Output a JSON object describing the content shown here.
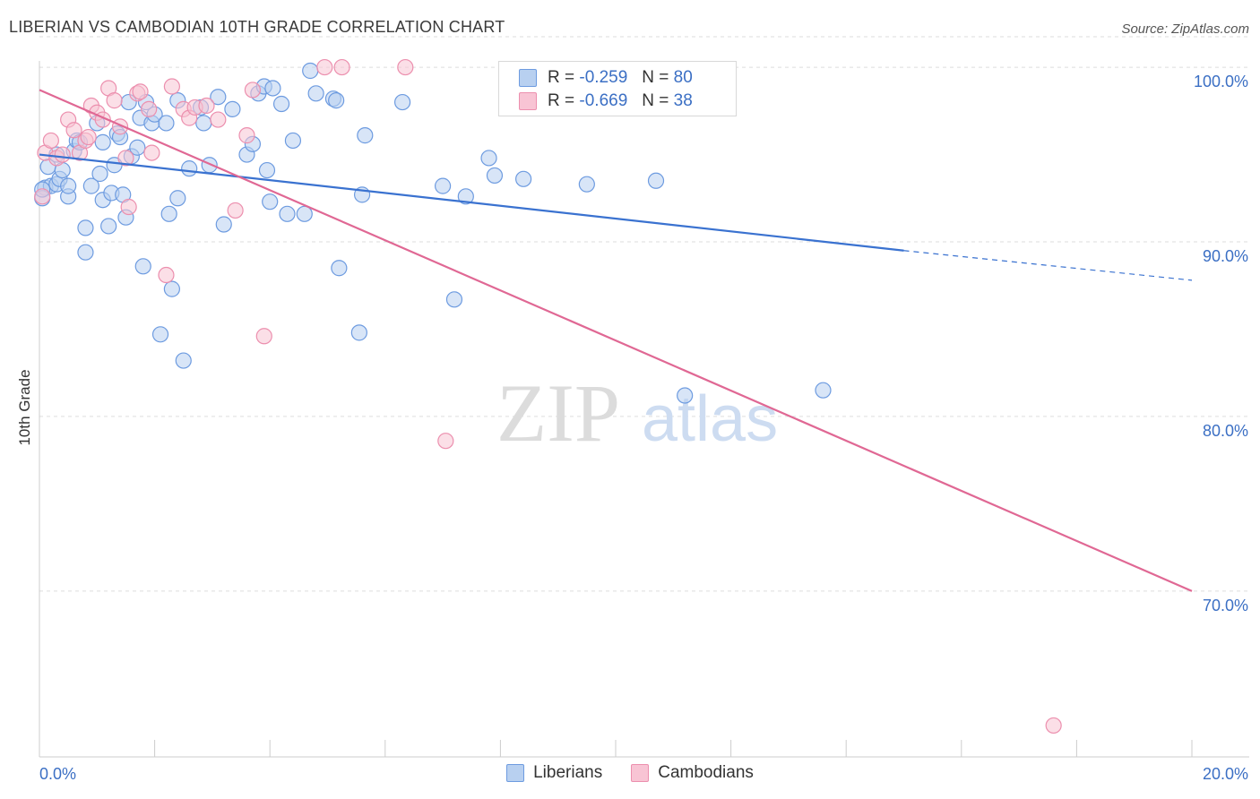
{
  "title": "LIBERIAN VS CAMBODIAN 10TH GRADE CORRELATION CHART",
  "source": "Source: ZipAtlas.com",
  "watermark": {
    "zip": "ZIP",
    "atlas": "atlas"
  },
  "legend": {
    "rows": [
      {
        "name": "Liberians",
        "r_label": "R =",
        "r_value": "-0.259",
        "n_label": "N =",
        "n_value": "80"
      },
      {
        "name": "Cambodians",
        "r_label": "R =",
        "r_value": "-0.669",
        "n_label": "N =",
        "n_value": "38"
      }
    ]
  },
  "colors": {
    "liberians_fill": "#b8d0f0",
    "liberians_stroke": "#6d9be0",
    "liberians_line": "#3a72d0",
    "cambodians_fill": "#f8c4d4",
    "cambodians_stroke": "#ec8fae",
    "cambodians_line": "#e06894",
    "tick_label": "#3b6fc4",
    "grid": "#dddddd"
  },
  "chart_data": {
    "type": "scatter",
    "title": "LIBERIAN VS CAMBODIAN 10TH GRADE CORRELATION CHART",
    "xlabel": "",
    "ylabel": "10th Grade",
    "xlim": [
      0,
      20
    ],
    "ylim": [
      60.5,
      101.8
    ],
    "x_tick_labels": {
      "left": "0.0%",
      "right": "20.0%"
    },
    "y_ticks": [
      {
        "value": 100,
        "label": "100.0%"
      },
      {
        "value": 90,
        "label": "90.0%"
      },
      {
        "value": 80,
        "label": "80.0%"
      },
      {
        "value": 70,
        "label": "70.0%"
      }
    ],
    "legend_position": "top-center",
    "series": [
      {
        "name": "Liberians",
        "r": -0.259,
        "n": 80,
        "trend": {
          "x0": 0.0,
          "y0": 95.0,
          "x1": 15.0,
          "y1": 89.5,
          "dash_x1": 20.0,
          "dash_y1": 87.8
        },
        "points": [
          [
            0.1,
            93.1
          ],
          [
            0.15,
            94.3
          ],
          [
            0.2,
            93.2
          ],
          [
            0.3,
            93.3
          ],
          [
            0.3,
            95.0
          ],
          [
            0.35,
            93.6
          ],
          [
            0.4,
            94.1
          ],
          [
            0.5,
            92.6
          ],
          [
            0.5,
            93.2
          ],
          [
            0.6,
            95.2
          ],
          [
            0.65,
            95.8
          ],
          [
            0.7,
            95.7
          ],
          [
            0.8,
            90.8
          ],
          [
            0.8,
            89.4
          ],
          [
            0.9,
            93.2
          ],
          [
            1.0,
            96.8
          ],
          [
            1.05,
            93.9
          ],
          [
            1.1,
            92.4
          ],
          [
            1.1,
            95.7
          ],
          [
            1.2,
            90.9
          ],
          [
            1.25,
            92.8
          ],
          [
            1.3,
            94.4
          ],
          [
            1.35,
            96.2
          ],
          [
            1.4,
            96.0
          ],
          [
            1.45,
            92.7
          ],
          [
            1.5,
            91.4
          ],
          [
            1.55,
            98.0
          ],
          [
            1.6,
            94.9
          ],
          [
            1.7,
            95.4
          ],
          [
            1.75,
            97.1
          ],
          [
            1.8,
            88.6
          ],
          [
            1.85,
            98.0
          ],
          [
            1.95,
            96.8
          ],
          [
            2.0,
            97.3
          ],
          [
            2.1,
            84.7
          ],
          [
            2.2,
            96.8
          ],
          [
            2.25,
            91.6
          ],
          [
            2.3,
            87.3
          ],
          [
            2.4,
            92.5
          ],
          [
            2.4,
            98.1
          ],
          [
            2.5,
            83.2
          ],
          [
            2.6,
            94.2
          ],
          [
            2.8,
            97.7
          ],
          [
            2.85,
            96.8
          ],
          [
            2.95,
            94.4
          ],
          [
            3.1,
            98.3
          ],
          [
            3.2,
            91.0
          ],
          [
            3.35,
            97.6
          ],
          [
            3.6,
            95.0
          ],
          [
            3.7,
            95.6
          ],
          [
            3.8,
            98.5
          ],
          [
            3.9,
            98.9
          ],
          [
            3.95,
            94.1
          ],
          [
            4.0,
            92.3
          ],
          [
            4.05,
            98.8
          ],
          [
            4.2,
            97.9
          ],
          [
            4.3,
            91.6
          ],
          [
            4.4,
            95.8
          ],
          [
            4.6,
            91.6
          ],
          [
            4.7,
            99.8
          ],
          [
            4.8,
            98.5
          ],
          [
            5.1,
            98.2
          ],
          [
            5.15,
            98.1
          ],
          [
            5.2,
            88.5
          ],
          [
            5.55,
            84.8
          ],
          [
            5.6,
            92.7
          ],
          [
            5.65,
            96.1
          ],
          [
            6.3,
            98.0
          ],
          [
            7.0,
            93.2
          ],
          [
            7.2,
            86.7
          ],
          [
            7.4,
            92.6
          ],
          [
            7.8,
            94.8
          ],
          [
            7.9,
            93.8
          ],
          [
            8.4,
            93.6
          ],
          [
            9.5,
            93.3
          ],
          [
            10.7,
            93.5
          ],
          [
            11.2,
            81.2
          ],
          [
            13.6,
            81.5
          ],
          [
            0.05,
            92.5
          ],
          [
            0.05,
            93.0
          ]
        ]
      },
      {
        "name": "Cambodians",
        "r": -0.669,
        "n": 38,
        "trend": {
          "x0": 0.0,
          "y0": 98.7,
          "x1": 20.0,
          "y1": 70.0
        },
        "points": [
          [
            0.1,
            95.1
          ],
          [
            0.2,
            95.8
          ],
          [
            0.3,
            94.8
          ],
          [
            0.5,
            97.0
          ],
          [
            0.6,
            96.4
          ],
          [
            0.7,
            95.1
          ],
          [
            0.8,
            95.8
          ],
          [
            0.85,
            96.0
          ],
          [
            0.9,
            97.8
          ],
          [
            1.0,
            97.4
          ],
          [
            1.1,
            97.0
          ],
          [
            1.2,
            98.8
          ],
          [
            1.3,
            98.1
          ],
          [
            1.4,
            96.6
          ],
          [
            1.5,
            94.8
          ],
          [
            1.55,
            92.0
          ],
          [
            1.7,
            98.5
          ],
          [
            1.75,
            98.6
          ],
          [
            1.9,
            97.6
          ],
          [
            1.95,
            95.1
          ],
          [
            2.2,
            88.1
          ],
          [
            2.3,
            98.9
          ],
          [
            2.5,
            97.6
          ],
          [
            2.6,
            97.1
          ],
          [
            2.7,
            97.7
          ],
          [
            2.9,
            97.8
          ],
          [
            3.1,
            97.0
          ],
          [
            3.4,
            91.8
          ],
          [
            3.6,
            96.1
          ],
          [
            3.7,
            98.7
          ],
          [
            3.9,
            84.6
          ],
          [
            4.95,
            100.0
          ],
          [
            5.25,
            100.0
          ],
          [
            6.35,
            100.0
          ],
          [
            7.05,
            78.6
          ],
          [
            17.6,
            62.3
          ],
          [
            0.05,
            92.6
          ],
          [
            0.4,
            95.0
          ]
        ]
      }
    ]
  }
}
